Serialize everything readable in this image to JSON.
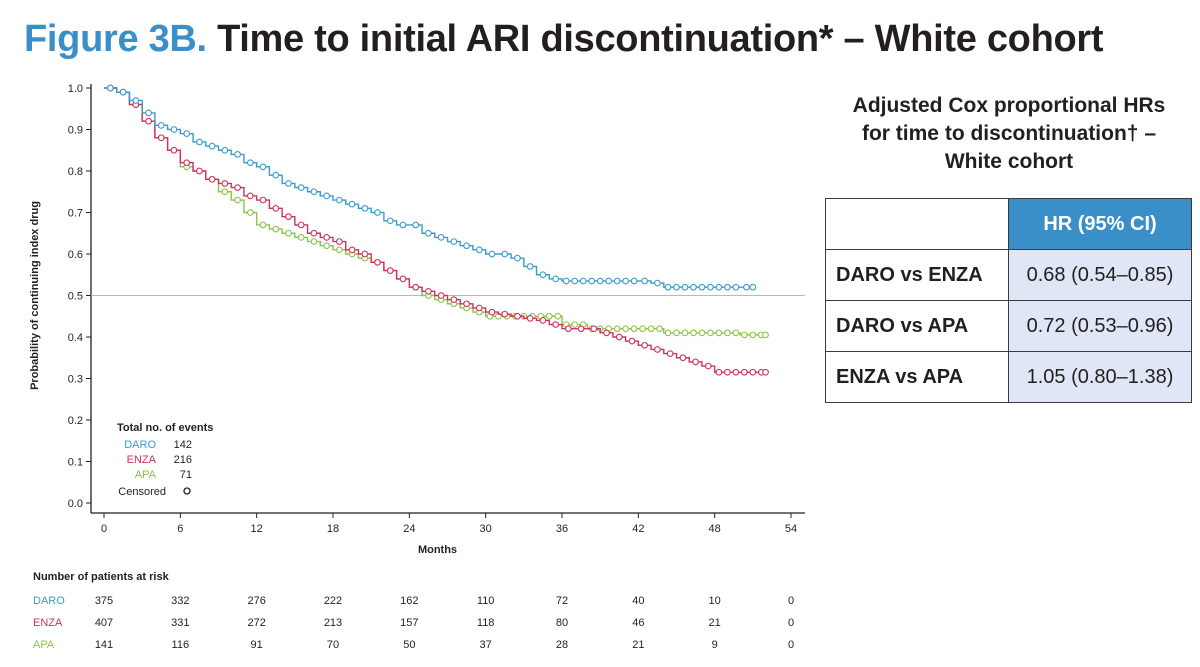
{
  "title": {
    "prefix": "Figure 3B.",
    "text": "Time to initial ARI discontinuation* – White cohort"
  },
  "chart_data": {
    "type": "line",
    "xlabel": "Months",
    "ylabel": "Probability of continuing index drug",
    "xlim": [
      0,
      54
    ],
    "ylim": [
      0,
      1
    ],
    "xticks": [
      0,
      6,
      12,
      18,
      24,
      30,
      36,
      42,
      48,
      54
    ],
    "yticks": [
      "0.0",
      "0.1",
      "0.2",
      "0.3",
      "0.4",
      "0.5",
      "0.6",
      "0.7",
      "0.8",
      "0.9",
      "1.0"
    ],
    "reference_line": 0.5,
    "grid": false,
    "legend": {
      "title": "Total no. of events",
      "placement": "bottom-left",
      "entries": [
        {
          "name": "DARO",
          "events": "142",
          "color": "#3a9ccd"
        },
        {
          "name": "ENZA",
          "events": "216",
          "color": "#d1325d"
        },
        {
          "name": "APA",
          "events": "71",
          "color": "#8cc44a"
        }
      ],
      "censored_label": "Censored"
    },
    "series": [
      {
        "name": "DARO",
        "color": "#3a9ccd",
        "x": [
          0,
          1,
          2,
          3,
          4,
          5,
          6,
          7,
          8,
          9,
          10,
          11,
          12,
          13,
          14,
          15,
          16,
          17,
          18,
          19,
          20,
          21,
          22,
          23,
          24,
          25,
          26,
          27,
          28,
          29,
          30,
          31,
          32,
          33,
          34,
          35,
          36,
          38,
          40,
          42,
          43,
          44,
          46,
          48,
          50,
          51
        ],
        "y": [
          1.0,
          0.99,
          0.97,
          0.94,
          0.91,
          0.9,
          0.89,
          0.87,
          0.86,
          0.85,
          0.84,
          0.82,
          0.81,
          0.79,
          0.77,
          0.76,
          0.75,
          0.74,
          0.73,
          0.72,
          0.71,
          0.7,
          0.68,
          0.67,
          0.67,
          0.65,
          0.64,
          0.63,
          0.62,
          0.61,
          0.6,
          0.6,
          0.59,
          0.57,
          0.55,
          0.54,
          0.535,
          0.535,
          0.535,
          0.535,
          0.53,
          0.52,
          0.52,
          0.52,
          0.52,
          0.52
        ]
      },
      {
        "name": "ENZA",
        "color": "#d1325d",
        "x": [
          0,
          1,
          2,
          3,
          4,
          5,
          6,
          7,
          8,
          9,
          10,
          11,
          12,
          13,
          14,
          15,
          16,
          17,
          18,
          19,
          20,
          21,
          22,
          23,
          24,
          25,
          26,
          27,
          28,
          29,
          30,
          31,
          32,
          33,
          34,
          35,
          36,
          37,
          38,
          39,
          40,
          41,
          42,
          43,
          44,
          45,
          46,
          47,
          48,
          50,
          52
        ],
        "y": [
          1.0,
          0.99,
          0.96,
          0.92,
          0.88,
          0.85,
          0.82,
          0.8,
          0.78,
          0.77,
          0.76,
          0.74,
          0.73,
          0.71,
          0.69,
          0.67,
          0.65,
          0.64,
          0.63,
          0.61,
          0.6,
          0.58,
          0.56,
          0.54,
          0.52,
          0.51,
          0.5,
          0.49,
          0.48,
          0.47,
          0.46,
          0.455,
          0.45,
          0.445,
          0.44,
          0.43,
          0.42,
          0.42,
          0.42,
          0.41,
          0.4,
          0.39,
          0.38,
          0.37,
          0.36,
          0.35,
          0.34,
          0.33,
          0.315,
          0.315,
          0.315
        ]
      },
      {
        "name": "APA",
        "color": "#8cc44a",
        "x": [
          0,
          1,
          2,
          3,
          4,
          5,
          6,
          7,
          8,
          9,
          10,
          11,
          12,
          13,
          14,
          15,
          16,
          17,
          18,
          19,
          20,
          21,
          22,
          23,
          24,
          25,
          26,
          27,
          28,
          29,
          30,
          32,
          34,
          36,
          38,
          40,
          42,
          44,
          46,
          48,
          50,
          52
        ],
        "y": [
          1.0,
          0.99,
          0.96,
          0.92,
          0.88,
          0.85,
          0.81,
          0.8,
          0.78,
          0.75,
          0.73,
          0.7,
          0.67,
          0.66,
          0.65,
          0.64,
          0.63,
          0.62,
          0.61,
          0.6,
          0.59,
          0.58,
          0.56,
          0.54,
          0.52,
          0.5,
          0.49,
          0.48,
          0.47,
          0.46,
          0.45,
          0.45,
          0.45,
          0.43,
          0.42,
          0.42,
          0.42,
          0.41,
          0.41,
          0.41,
          0.405,
          0.405
        ]
      }
    ],
    "at_risk": {
      "title": "Number of patients at risk",
      "rows": [
        {
          "name": "DARO",
          "color": "#3a9ccd",
          "values": [
            "375",
            "332",
            "276",
            "222",
            "162",
            "110",
            "72",
            "40",
            "10",
            "0"
          ]
        },
        {
          "name": "ENZA",
          "color": "#d1325d",
          "values": [
            "407",
            "331",
            "272",
            "213",
            "157",
            "118",
            "80",
            "46",
            "21",
            "0"
          ]
        },
        {
          "name": "APA",
          "color": "#8cc44a",
          "values": [
            "141",
            "116",
            "91",
            "70",
            "50",
            "37",
            "28",
            "21",
            "9",
            "0"
          ]
        }
      ]
    }
  },
  "hr_panel": {
    "title_lines": [
      "Adjusted Cox proportional HRs",
      "for time to discontinuation† –",
      "White cohort"
    ],
    "header": "HR (95% CI)",
    "rows": [
      {
        "label": "DARO vs ENZA",
        "value": "0.68 (0.54–0.85)"
      },
      {
        "label": "DARO vs APA",
        "value": "0.72 (0.53–0.96)"
      },
      {
        "label": "ENZA vs APA",
        "value": "1.05 (0.80–1.38)"
      }
    ]
  }
}
